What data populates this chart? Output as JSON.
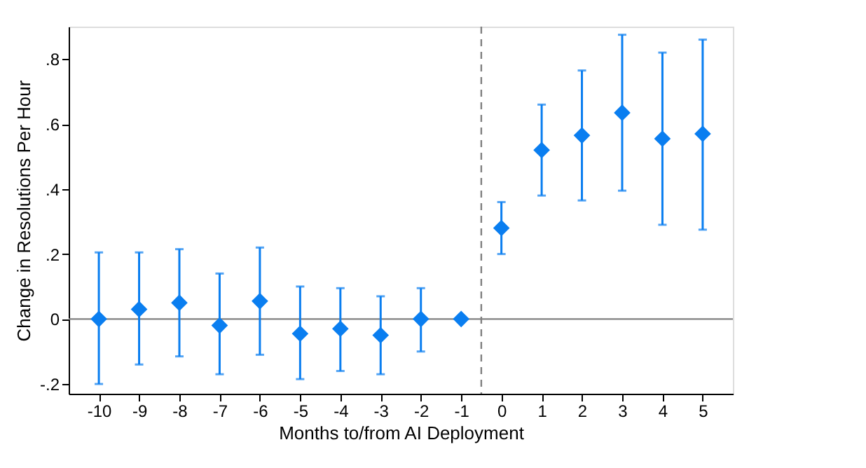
{
  "chart_data": {
    "type": "scatter",
    "xlabel": "Months to/from AI Deployment",
    "ylabel": "Change in Resolutions Per Hour",
    "x": [
      -10,
      -9,
      -8,
      -7,
      -6,
      -5,
      -4,
      -3,
      -2,
      -1,
      0,
      1,
      2,
      3,
      4,
      5
    ],
    "series": [
      {
        "color": "#0a7ef0",
        "values": [
          0,
          0.03,
          0.05,
          -0.02,
          0.055,
          -0.045,
          -0.03,
          -0.05,
          0,
          0,
          0.28,
          0.52,
          0.565,
          0.635,
          0.555,
          0.57
        ],
        "errors": [
          [
            -0.2,
            0.205
          ],
          [
            -0.14,
            0.205
          ],
          [
            -0.115,
            0.215
          ],
          [
            -0.17,
            0.14
          ],
          [
            -0.11,
            0.22
          ],
          [
            -0.185,
            0.1
          ],
          [
            -0.16,
            0.095
          ],
          [
            -0.17,
            0.07
          ],
          [
            -0.1,
            0.095
          ],
          null,
          [
            0.2,
            0.36
          ],
          [
            0.38,
            0.66
          ],
          [
            0.365,
            0.765
          ],
          [
            0.395,
            0.875
          ],
          [
            0.29,
            0.82
          ],
          [
            0.275,
            0.86
          ]
        ]
      }
    ],
    "marker": "diamond",
    "xlim": [
      -10.75,
      5.75
    ],
    "xticks": [
      -10,
      -9,
      -8,
      -7,
      -6,
      -5,
      -4,
      -3,
      -2,
      -1,
      0,
      1,
      2,
      3,
      4,
      5
    ],
    "ylim": [
      -0.23,
      0.9
    ],
    "yticks": [
      {
        "value": -0.2,
        "label": "-.2"
      },
      0,
      {
        "value": 0.2,
        "label": ".2"
      },
      {
        "value": 0.4,
        "label": ".4"
      },
      {
        "value": 0.6,
        "label": ".6"
      },
      {
        "value": 0.8,
        "label": ".8"
      }
    ],
    "ref_lines": [
      {
        "axis": "y",
        "value": 0,
        "color": "#808080",
        "line_style": "solid"
      },
      {
        "axis": "x",
        "value": -0.5,
        "color": "#808080",
        "line_style": "dashed"
      }
    ],
    "grid": false
  }
}
